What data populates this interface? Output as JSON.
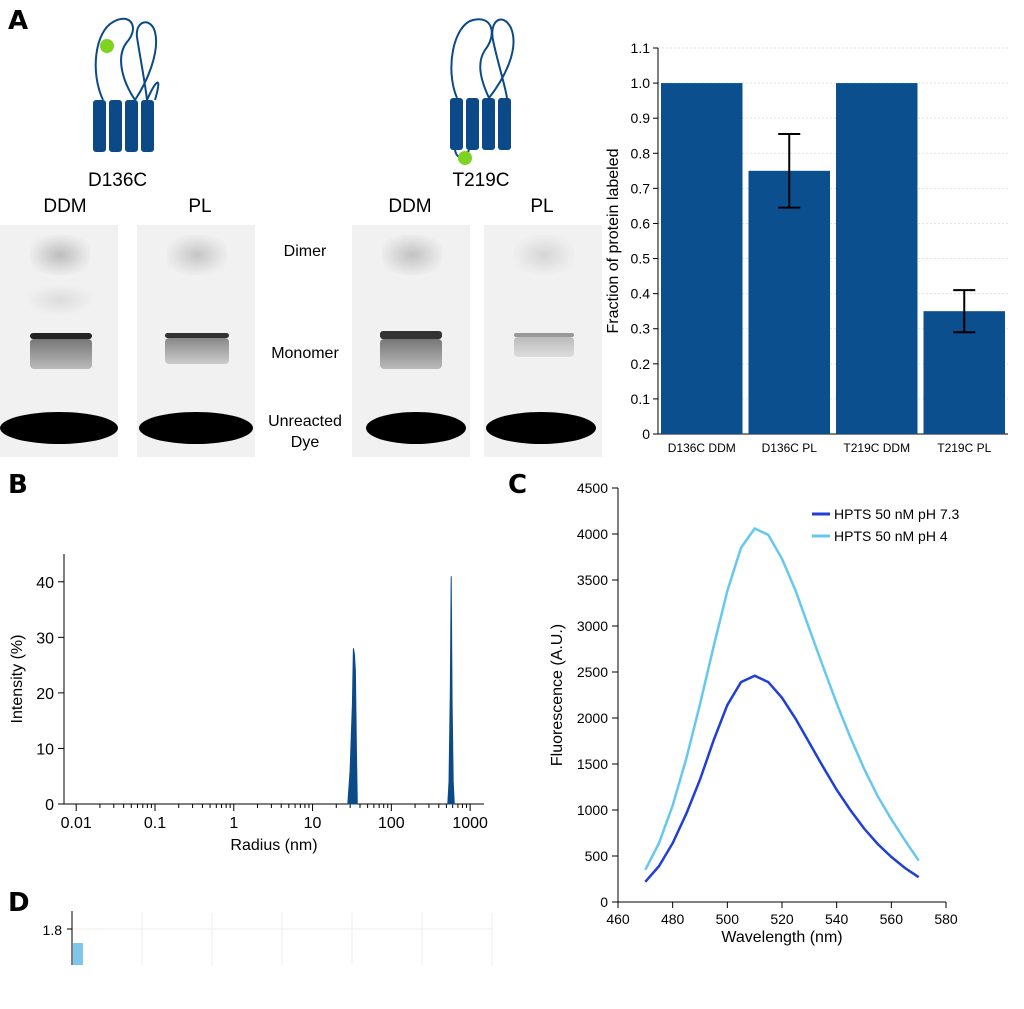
{
  "figure": {
    "panel_letters": [
      "A",
      "B",
      "C",
      "D"
    ],
    "panel_a": {
      "constructs": [
        {
          "label": "D136C",
          "lanes": [
            "DDM",
            "PL"
          ]
        },
        {
          "label": "T219C",
          "lanes": [
            "DDM",
            "PL"
          ]
        }
      ],
      "band_labels": {
        "dimer": "Dimer",
        "monomer": "Monomer",
        "dye_line1": "Unreacted",
        "dye_line2": "Dye"
      },
      "label_dot_color": "#7ed321",
      "protein_color": "#0b4a87"
    }
  },
  "chart_data": [
    {
      "panel": "A",
      "type": "bar",
      "categories": [
        "D136C DDM",
        "D136C PL",
        "T219C DDM",
        "T219C PL"
      ],
      "values": [
        1.0,
        0.75,
        1.0,
        0.35
      ],
      "error": [
        null,
        0.105,
        null,
        0.06
      ],
      "ylabel": "Fraction of protein labeled",
      "xlabel": "",
      "ylim": [
        0,
        1.1
      ],
      "yticks": [
        "0",
        "0.1",
        "0.2",
        "0.3",
        "0.4",
        "0.5",
        "0.6",
        "0.7",
        "0.8",
        "0.9",
        "1.0",
        "1.1"
      ],
      "grid": true,
      "color": "#0b4f8f"
    },
    {
      "panel": "B",
      "type": "area",
      "xscale": "log",
      "xlabel": "Radius (nm)",
      "ylabel": "Intensity (%)",
      "xticks": [
        "0.01",
        "0.1",
        "1",
        "10",
        "100",
        "1000"
      ],
      "yticks": [
        "0",
        "10",
        "20",
        "30",
        "40"
      ],
      "ylim": [
        0,
        45
      ],
      "xlim": [
        0.007,
        1500
      ],
      "peaks": [
        {
          "x": [
            28,
            30,
            32,
            33,
            34,
            35,
            36,
            37
          ],
          "y": [
            0,
            6,
            18,
            28,
            27,
            24,
            10,
            0
          ]
        },
        {
          "x": [
            520,
            540,
            560,
            575,
            590,
            610,
            630
          ],
          "y": [
            0,
            4,
            20,
            41,
            18,
            4,
            0
          ]
        }
      ],
      "color": "#0b4a87"
    },
    {
      "panel": "C",
      "type": "line",
      "xlabel": "Wavelength (nm)",
      "ylabel": "Fluorescence (A.U.)",
      "xlim": [
        460,
        580
      ],
      "ylim": [
        0,
        4500
      ],
      "xticks": [
        "460",
        "480",
        "500",
        "520",
        "540",
        "560",
        "580"
      ],
      "yticks": [
        "0",
        "500",
        "1000",
        "1500",
        "2000",
        "2500",
        "3000",
        "3500",
        "4000",
        "4500"
      ],
      "legend": "top-right",
      "x": [
        470,
        475,
        480,
        485,
        490,
        495,
        500,
        505,
        510,
        515,
        520,
        525,
        530,
        535,
        540,
        545,
        550,
        555,
        560,
        565,
        570
      ],
      "series": [
        {
          "name": "HPTS 50 nM pH 7.3",
          "color": "#1f3fd6",
          "values": [
            220,
            390,
            640,
            960,
            1330,
            1760,
            2140,
            2390,
            2460,
            2390,
            2220,
            1990,
            1730,
            1470,
            1220,
            1000,
            800,
            630,
            490,
            370,
            270
          ]
        },
        {
          "name": "HPTS 50 nM pH 4",
          "color": "#66c8ee",
          "values": [
            350,
            640,
            1050,
            1560,
            2150,
            2780,
            3380,
            3850,
            4060,
            3990,
            3730,
            3380,
            2970,
            2560,
            2160,
            1790,
            1450,
            1150,
            900,
            670,
            450
          ]
        }
      ]
    },
    {
      "panel": "D",
      "type": "bar",
      "yticks": [
        "1.8"
      ],
      "xlabel": "",
      "ylabel": ""
    }
  ]
}
